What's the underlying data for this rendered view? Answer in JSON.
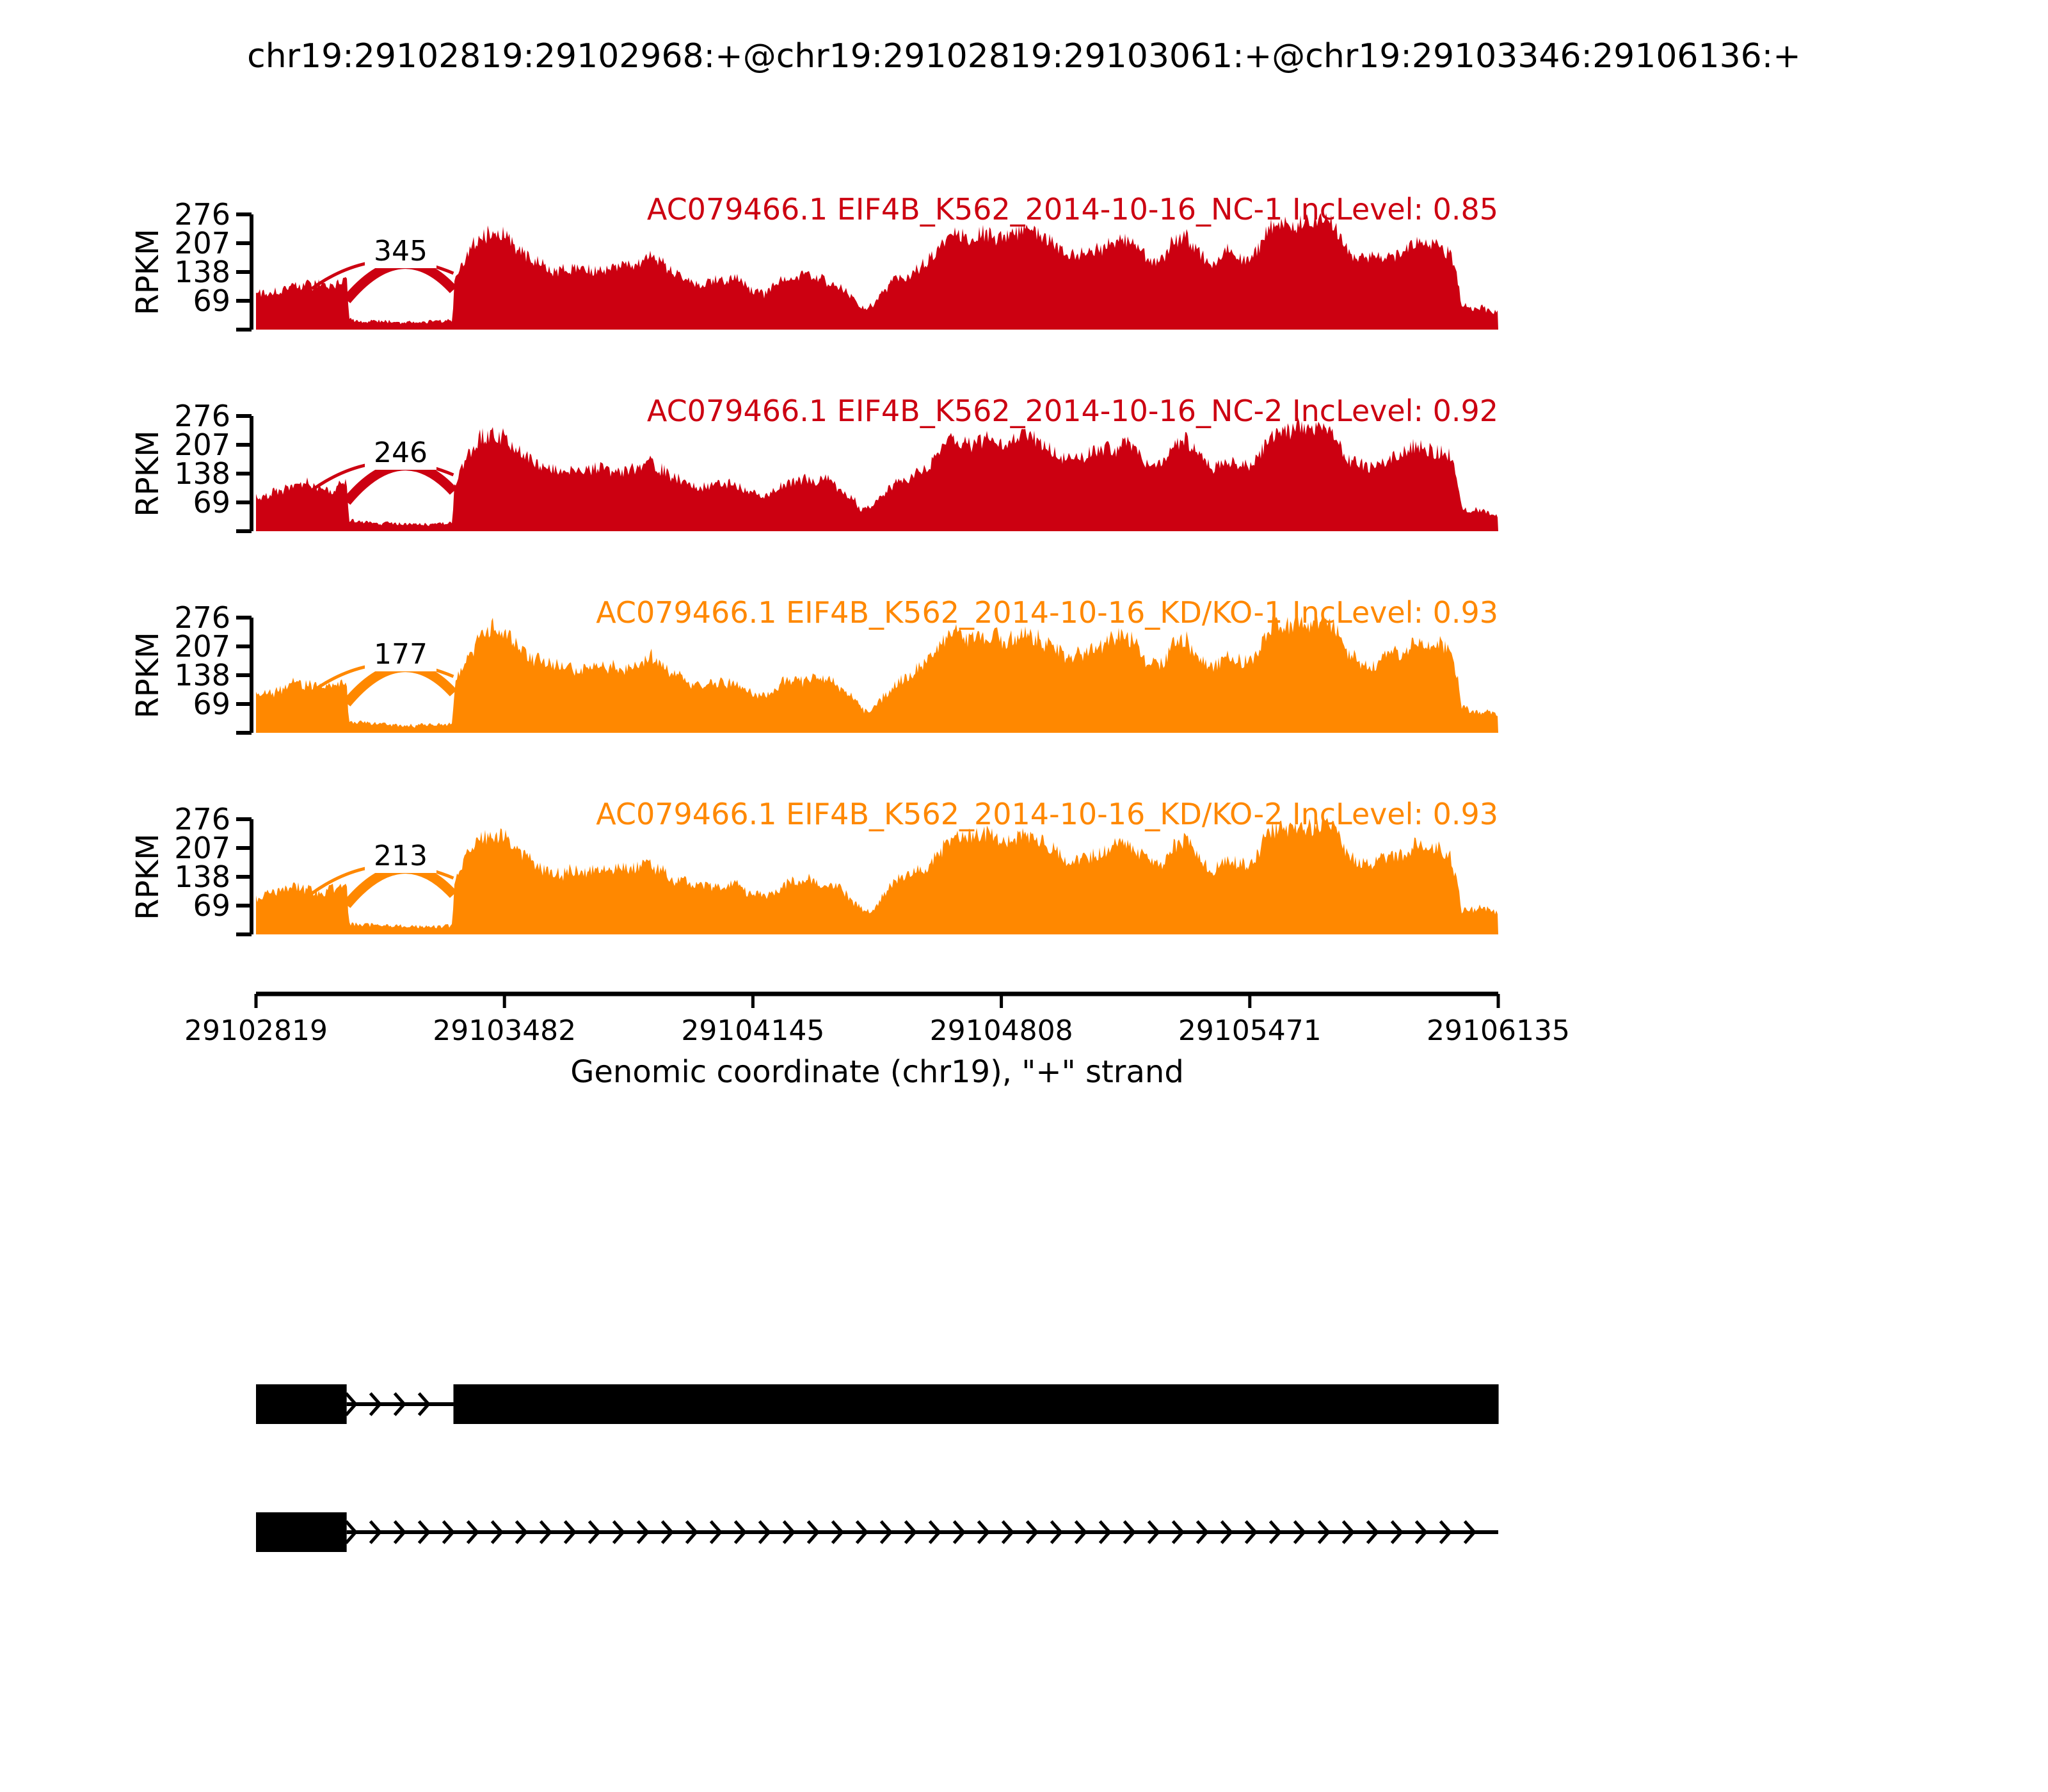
{
  "title": "chr19:29102819:29102968:+@chr19:29102819:29103061:+@chr19:29103346:29106136:+",
  "y_axis": {
    "label": "RPKM",
    "ticks": [
      276,
      207,
      138,
      69
    ]
  },
  "x_axis": {
    "label": "Genomic coordinate (chr19), \"+\" strand",
    "ticks": [
      29102819,
      29103482,
      29104145,
      29104808,
      29105471,
      29106135
    ],
    "start": 29102819,
    "end": 29106135
  },
  "tracks": [
    {
      "label": "AC079466.1 EIF4B_K562_2014-10-16_NC-1 IncLevel: 0.85",
      "color": "#CC0011",
      "junction_count": 345,
      "inc_level": "0.85",
      "seed": 101,
      "scale": 1.0
    },
    {
      "label": "AC079466.1 EIF4B_K562_2014-10-16_NC-2 IncLevel: 0.92",
      "color": "#CC0011",
      "junction_count": 246,
      "inc_level": "0.92",
      "seed": 202,
      "scale": 0.97
    },
    {
      "label": "AC079466.1 EIF4B_K562_2014-10-16_KD/KO-1 IncLevel: 0.93",
      "color": "#FF8800",
      "junction_count": 177,
      "inc_level": "0.93",
      "seed": 303,
      "scale": 1.03
    },
    {
      "label": "AC079466.1 EIF4B_K562_2014-10-16_KD/KO-2 IncLevel: 0.93",
      "color": "#FF8800",
      "junction_count": 213,
      "inc_level": "0.93",
      "seed": 404,
      "scale": 1.01
    }
  ],
  "chart_data": {
    "type": "area",
    "title": "chr19:29102819:29102968:+@chr19:29102819:29103061:+@chr19:29103346:29106136:+",
    "xlabel": "Genomic coordinate (chr19), \"+\" strand",
    "ylabel": "RPKM",
    "x_ticks": [
      29102819,
      29103482,
      29104145,
      29104808,
      29105471,
      29106135
    ],
    "y_ticks": [
      69,
      138,
      207,
      276
    ],
    "ylim": [
      0,
      290
    ],
    "x_range": [
      29102819,
      29106135
    ],
    "legend_position": "none",
    "grid": false,
    "series": [
      {
        "name": "AC079466.1 EIF4B_K562_2014-10-16_NC-1",
        "color": "#CC0011",
        "inc_level": 0.85,
        "junction_reads": 345
      },
      {
        "name": "AC079466.1 EIF4B_K562_2014-10-16_NC-2",
        "color": "#CC0011",
        "inc_level": 0.92,
        "junction_reads": 246
      },
      {
        "name": "AC079466.1 EIF4B_K562_2014-10-16_KD/KO-1",
        "color": "#FF8800",
        "inc_level": 0.93,
        "junction_reads": 177
      },
      {
        "name": "AC079466.1 EIF4B_K562_2014-10-16_KD/KO-2",
        "color": "#FF8800",
        "inc_level": 0.93,
        "junction_reads": 213
      }
    ],
    "event": {
      "type": "A5SS",
      "short_exon": [
        29102819,
        29102968
      ],
      "long_exon": [
        29102819,
        29103061
      ],
      "downstream_exon": [
        29103346,
        29106136
      ]
    },
    "junctions": [
      {
        "from": 29102968,
        "to": 29103346
      },
      {
        "from": 29103061,
        "to": 29103346
      }
    ],
    "coverage_envelope": [
      [
        0,
        86
      ],
      [
        30,
        96
      ],
      [
        60,
        100
      ],
      [
        90,
        106
      ],
      [
        120,
        110
      ],
      [
        146,
        110
      ],
      [
        150,
        96
      ],
      [
        156,
        108
      ],
      [
        200,
        110
      ],
      [
        230,
        116
      ],
      [
        242,
        118
      ],
      [
        248,
        24
      ],
      [
        320,
        19
      ],
      [
        420,
        18
      ],
      [
        500,
        20
      ],
      [
        524,
        22
      ],
      [
        530,
        120
      ],
      [
        560,
        185
      ],
      [
        600,
        228
      ],
      [
        635,
        242
      ],
      [
        665,
        225
      ],
      [
        700,
        195
      ],
      [
        740,
        168
      ],
      [
        780,
        152
      ],
      [
        820,
        146
      ],
      [
        860,
        152
      ],
      [
        900,
        150
      ],
      [
        940,
        148
      ],
      [
        980,
        152
      ],
      [
        1020,
        160
      ],
      [
        1050,
        182
      ],
      [
        1070,
        160
      ],
      [
        1110,
        140
      ],
      [
        1150,
        120
      ],
      [
        1180,
        113
      ],
      [
        1230,
        115
      ],
      [
        1270,
        118
      ],
      [
        1320,
        92
      ],
      [
        1360,
        88
      ],
      [
        1410,
        120
      ],
      [
        1450,
        128
      ],
      [
        1500,
        125
      ],
      [
        1540,
        118
      ],
      [
        1575,
        95
      ],
      [
        1605,
        62
      ],
      [
        1625,
        48
      ],
      [
        1650,
        58
      ],
      [
        1680,
        95
      ],
      [
        1710,
        118
      ],
      [
        1750,
        135
      ],
      [
        1790,
        160
      ],
      [
        1830,
        205
      ],
      [
        1860,
        238
      ],
      [
        1890,
        225
      ],
      [
        1930,
        232
      ],
      [
        1960,
        228
      ],
      [
        2000,
        210
      ],
      [
        2030,
        228
      ],
      [
        2060,
        235
      ],
      [
        2090,
        222
      ],
      [
        2120,
        210
      ],
      [
        2150,
        182
      ],
      [
        2190,
        178
      ],
      [
        2230,
        190
      ],
      [
        2270,
        205
      ],
      [
        2310,
        222
      ],
      [
        2340,
        215
      ],
      [
        2380,
        172
      ],
      [
        2420,
        168
      ],
      [
        2450,
        215
      ],
      [
        2480,
        228
      ],
      [
        2520,
        185
      ],
      [
        2550,
        152
      ],
      [
        2590,
        180
      ],
      [
        2620,
        172
      ],
      [
        2650,
        158
      ],
      [
        2680,
        195
      ],
      [
        2700,
        240
      ],
      [
        2730,
        255
      ],
      [
        2760,
        245
      ],
      [
        2790,
        262
      ],
      [
        2820,
        250
      ],
      [
        2850,
        268
      ],
      [
        2880,
        240
      ],
      [
        2910,
        190
      ],
      [
        2940,
        168
      ],
      [
        2970,
        165
      ],
      [
        3010,
        175
      ],
      [
        3050,
        185
      ],
      [
        3090,
        208
      ],
      [
        3120,
        212
      ],
      [
        3160,
        205
      ],
      [
        3190,
        185
      ],
      [
        3210,
        120
      ],
      [
        3218,
        62
      ],
      [
        3250,
        55
      ],
      [
        3290,
        50
      ],
      [
        3316,
        42
      ]
    ],
    "isoforms": [
      {
        "exons": [
          [
            29102819,
            29103061
          ],
          [
            29103346,
            29106136
          ]
        ],
        "intron_arrows": [
          [
            29103061,
            29103346
          ]
        ]
      },
      {
        "exons": [
          [
            29102819,
            29103061
          ]
        ],
        "intron_arrows": [
          [
            29103061,
            29106136
          ]
        ]
      }
    ]
  }
}
